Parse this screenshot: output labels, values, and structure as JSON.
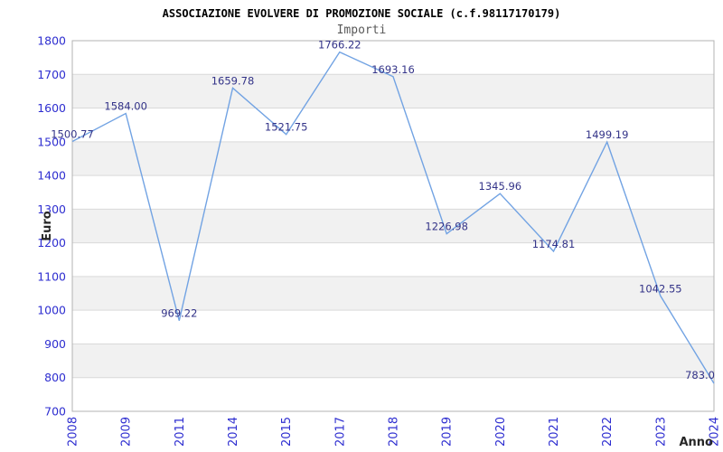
{
  "chart": {
    "title": "ASSOCIAZIONE EVOLVERE DI PROMOZIONE SOCIALE (c.f.98117170179)",
    "subtitle": "Importi"
  },
  "chart_data": {
    "type": "line",
    "title": "ASSOCIAZIONE EVOLVERE DI PROMOZIONE SOCIALE (c.f.98117170179)",
    "subtitle": "Importi",
    "xlabel": "Anno",
    "ylabel": "Euro",
    "categories": [
      "2008",
      "2009",
      "2011",
      "2014",
      "2015",
      "2017",
      "2018",
      "2019",
      "2020",
      "2021",
      "2022",
      "2023",
      "2024"
    ],
    "series": [
      {
        "name": "Importi",
        "values": [
          1500.77,
          1584.0,
          969.22,
          1659.78,
          1521.75,
          1766.22,
          1693.16,
          1226.98,
          1345.96,
          1174.81,
          1499.19,
          1042.55,
          783.0
        ]
      }
    ],
    "value_labels": [
      "1500.77",
      "1584.00",
      "969.22",
      "1659.78",
      "1521.75",
      "1766.22",
      "1693.16",
      "1226.98",
      "1345.96",
      "1174.81",
      "1499.19",
      "1042.55",
      "783.0"
    ],
    "ylim": [
      700,
      1800
    ],
    "ytick_step": 100,
    "yticks": [
      700,
      800,
      900,
      1000,
      1100,
      1200,
      1300,
      1400,
      1500,
      1600,
      1700,
      1800
    ],
    "grid": true,
    "alternating_bands": true,
    "legend": "none",
    "markers": "none",
    "colors": {
      "line": "#72a3e3",
      "tick_label": "#2e2ed0",
      "value_label": "#333388",
      "band": "#f1f1f1",
      "gridline": "#d9d9d9",
      "border": "#b3b3b3",
      "title": "#000000",
      "subtitle": "#595959",
      "axis_title": "#262626",
      "background": "#ffffff"
    }
  }
}
